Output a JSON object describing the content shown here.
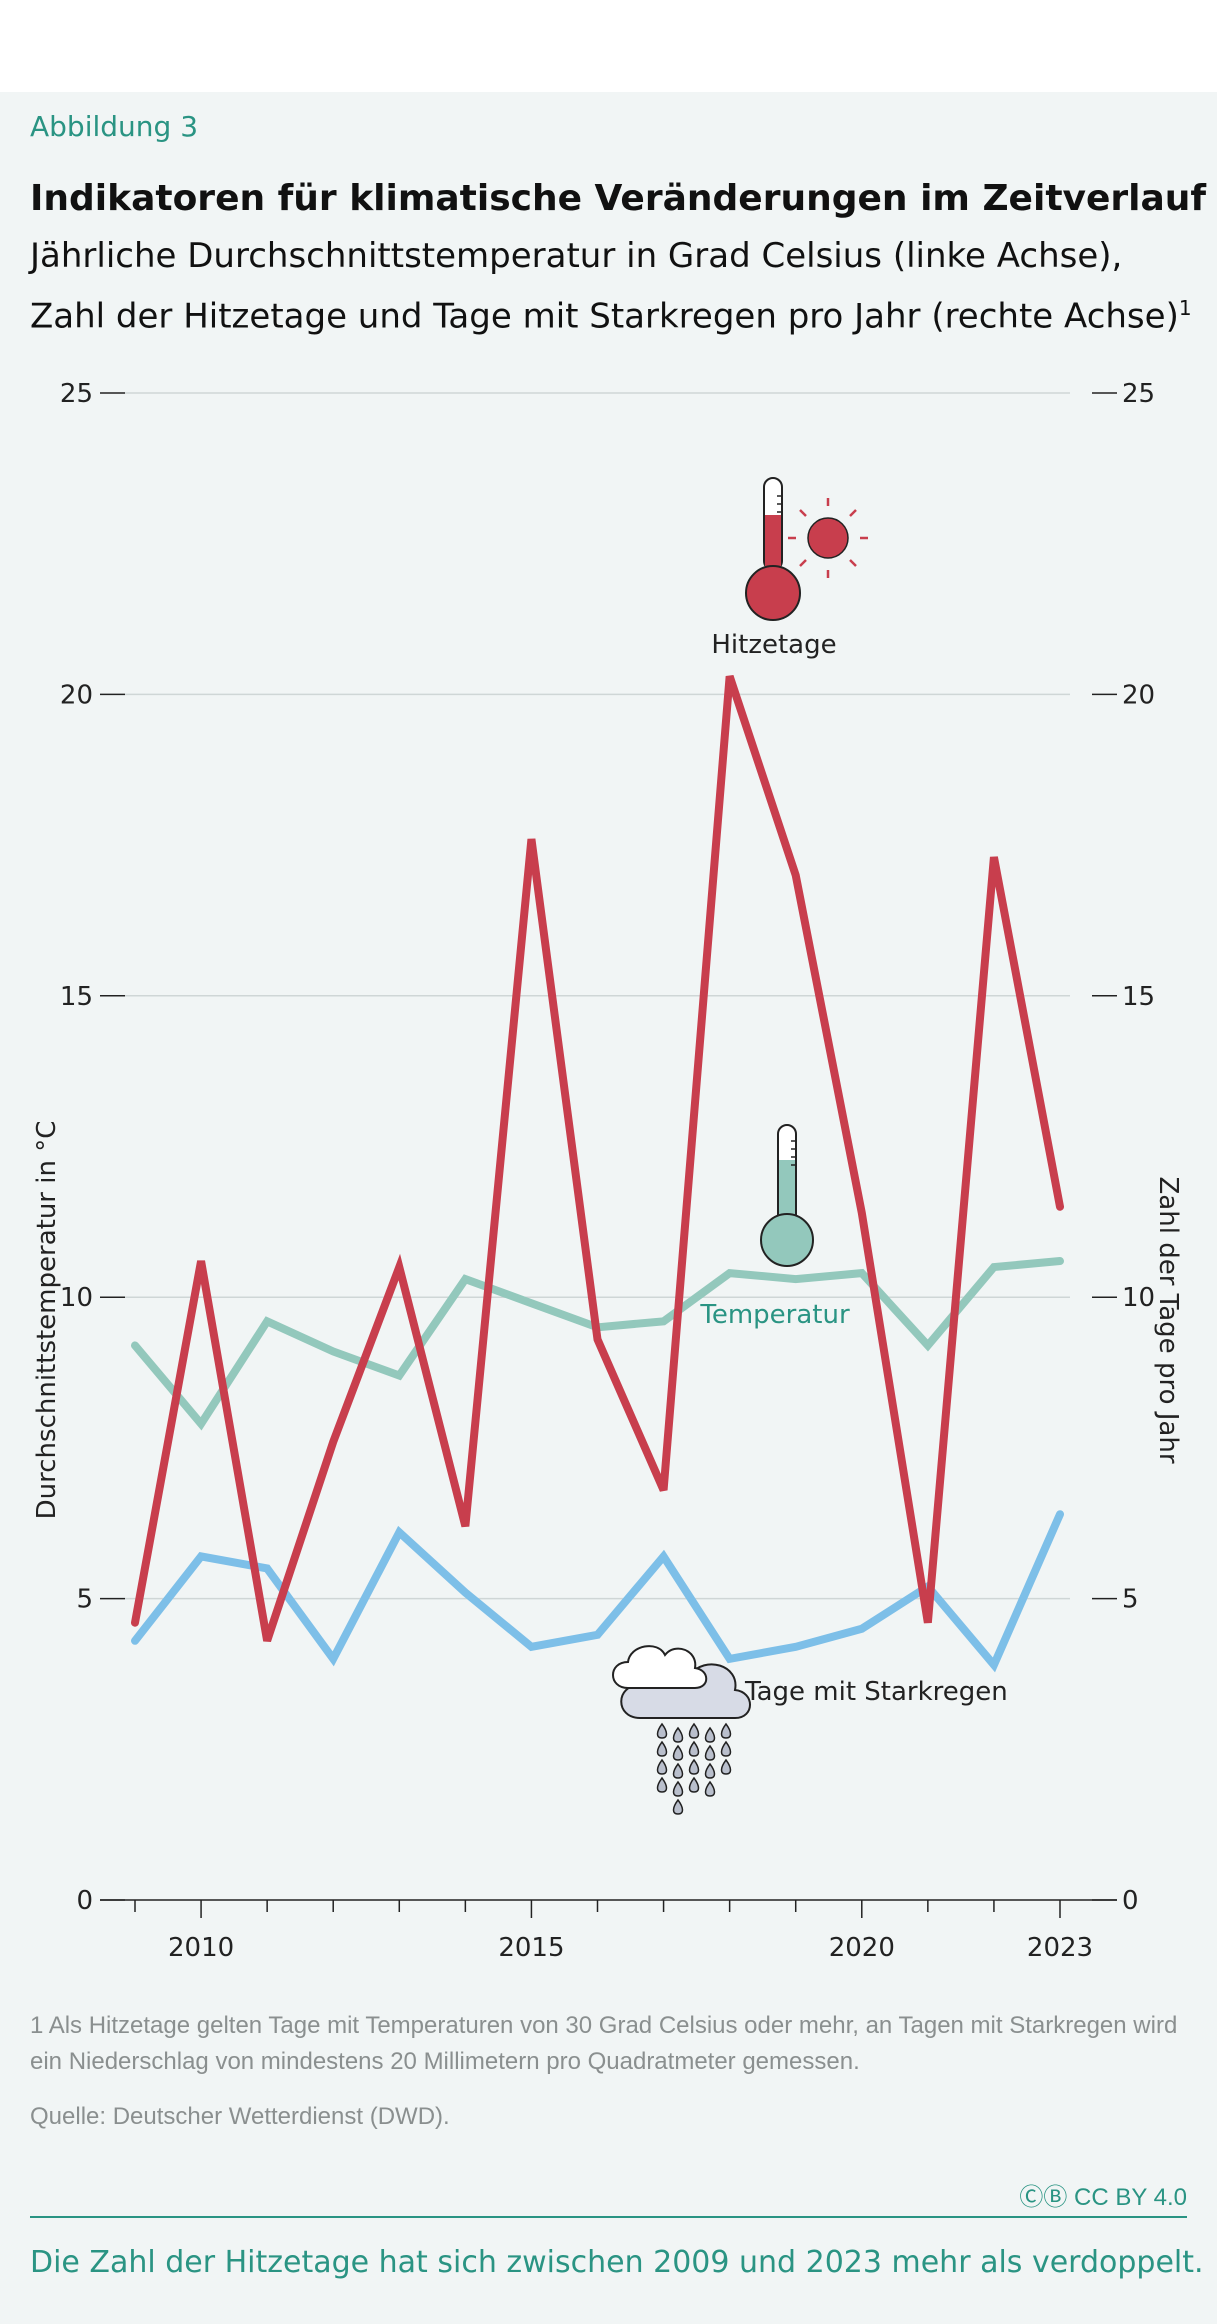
{
  "header": {
    "kicker": "Abbildung 3",
    "title": "Indikatoren für klimatische Veränderungen im Zeitverlauf",
    "subtitle_line1": "Jährliche Durchschnittstemperatur in Grad Celsius (linke Achse),",
    "subtitle_line2": "Zahl der Hitzetage und Tage mit Starkregen pro Jahr (rechte Achse)",
    "subtitle_footnote_mark": "1"
  },
  "chart_data": {
    "type": "line",
    "ylabel_left": "Durchschnittstemperatur in °C",
    "ylabel_right": "Zahl der Tage pro Jahr",
    "ylim": [
      0,
      25
    ],
    "yticks": [
      0,
      5,
      10,
      15,
      20,
      25
    ],
    "x": [
      2009,
      2010,
      2011,
      2012,
      2013,
      2014,
      2015,
      2016,
      2017,
      2018,
      2019,
      2020,
      2021,
      2022,
      2023
    ],
    "xtick_labels": [
      {
        "x": 2010,
        "label": "2010"
      },
      {
        "x": 2015,
        "label": "2015"
      },
      {
        "x": 2020,
        "label": "2020"
      },
      {
        "x": 2023,
        "label": "2023"
      }
    ],
    "grid": true,
    "series": [
      {
        "name": "Temperatur",
        "axis": "left",
        "color": "#93c8bc",
        "values": [
          9.2,
          7.9,
          9.6,
          9.1,
          8.7,
          10.3,
          9.9,
          9.5,
          9.6,
          10.4,
          10.3,
          10.4,
          9.2,
          10.5,
          10.6
        ]
      },
      {
        "name": "Hitzetage",
        "axis": "right",
        "color": "#c83e4d",
        "values": [
          4.6,
          10.6,
          4.3,
          7.6,
          10.5,
          6.2,
          17.6,
          9.3,
          6.8,
          20.3,
          17.0,
          11.4,
          4.6,
          17.3,
          11.5
        ]
      },
      {
        "name": "Tage mit Starkregen",
        "axis": "right",
        "color": "#7dbfe8",
        "values": [
          4.3,
          5.7,
          5.5,
          4.0,
          6.1,
          5.1,
          4.2,
          4.4,
          5.7,
          4.0,
          4.2,
          4.5,
          5.2,
          3.9,
          6.4
        ]
      }
    ],
    "icons": {
      "heat": "thermometer-sun-icon",
      "temperature": "thermometer-icon",
      "rain": "rain-cloud-icon"
    }
  },
  "footer": {
    "footnote": "1   Als Hitzetage gelten Tage mit Temperaturen von 30 Grad Celsius oder mehr, an Tagen mit Starkregen wird ein Niederschlag von mindestens 20 Millimetern pro Quadratmeter gemessen.",
    "source": "Quelle: Deutscher Wetterdienst (DWD).",
    "license": "CC BY 4.0",
    "license_icon": "cc-by-icon",
    "summary": "Die Zahl der Hitzetage hat sich zwischen 2009 und 2023 mehr als verdoppelt."
  }
}
